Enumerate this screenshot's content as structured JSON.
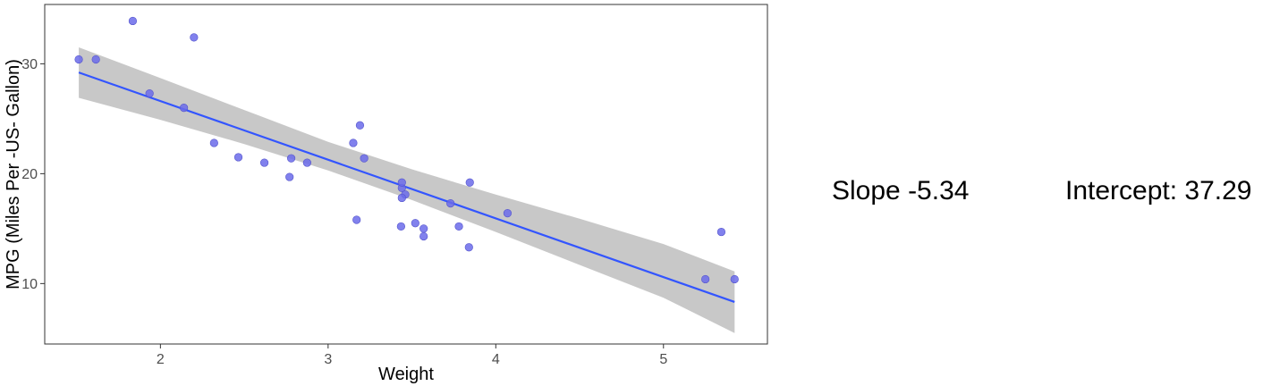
{
  "chart_data": {
    "type": "scatter",
    "xlabel": "Weight",
    "ylabel": "MPG (Miles Per -US- Gallon)",
    "xlim": [
      1.31,
      5.62
    ],
    "ylim": [
      4.5,
      35.4
    ],
    "x_ticks": [
      2,
      3,
      4,
      5
    ],
    "y_ticks": [
      10,
      20,
      30
    ],
    "grid": false,
    "colors": {
      "points": "#6b6bea",
      "line": "#3355ff",
      "band": "#c8c8c8"
    },
    "points": [
      {
        "x": 2.62,
        "y": 21.0
      },
      {
        "x": 2.875,
        "y": 21.0
      },
      {
        "x": 2.32,
        "y": 22.8
      },
      {
        "x": 3.215,
        "y": 21.4
      },
      {
        "x": 3.44,
        "y": 18.7
      },
      {
        "x": 3.46,
        "y": 18.1
      },
      {
        "x": 3.57,
        "y": 14.3
      },
      {
        "x": 3.19,
        "y": 24.4
      },
      {
        "x": 3.15,
        "y": 22.8
      },
      {
        "x": 3.44,
        "y": 19.2
      },
      {
        "x": 3.44,
        "y": 17.8
      },
      {
        "x": 4.07,
        "y": 16.4
      },
      {
        "x": 3.73,
        "y": 17.3
      },
      {
        "x": 3.78,
        "y": 15.2
      },
      {
        "x": 5.25,
        "y": 10.4
      },
      {
        "x": 5.424,
        "y": 10.4
      },
      {
        "x": 5.345,
        "y": 14.7
      },
      {
        "x": 2.2,
        "y": 32.4
      },
      {
        "x": 1.615,
        "y": 30.4
      },
      {
        "x": 1.835,
        "y": 33.9
      },
      {
        "x": 2.465,
        "y": 21.5
      },
      {
        "x": 3.52,
        "y": 15.5
      },
      {
        "x": 3.435,
        "y": 15.2
      },
      {
        "x": 3.84,
        "y": 13.3
      },
      {
        "x": 3.845,
        "y": 19.2
      },
      {
        "x": 1.935,
        "y": 27.3
      },
      {
        "x": 2.14,
        "y": 26.0
      },
      {
        "x": 1.513,
        "y": 30.4
      },
      {
        "x": 3.17,
        "y": 15.8
      },
      {
        "x": 2.77,
        "y": 19.7
      },
      {
        "x": 3.57,
        "y": 15.0
      },
      {
        "x": 2.78,
        "y": 21.4
      }
    ],
    "fit": {
      "slope": -5.34,
      "intercept": 37.29,
      "x_range": [
        1.513,
        5.424
      ]
    },
    "confidence_band": [
      {
        "x": 1.513,
        "lower": 26.9,
        "upper": 31.5
      },
      {
        "x": 2.0,
        "lower": 24.9,
        "upper": 28.7
      },
      {
        "x": 2.5,
        "lower": 22.7,
        "upper": 25.8
      },
      {
        "x": 3.0,
        "lower": 20.3,
        "upper": 22.9
      },
      {
        "x": 3.5,
        "lower": 17.6,
        "upper": 20.4
      },
      {
        "x": 4.0,
        "lower": 14.7,
        "upper": 18.1
      },
      {
        "x": 4.5,
        "lower": 11.7,
        "upper": 15.9
      },
      {
        "x": 5.0,
        "lower": 8.7,
        "upper": 13.6
      },
      {
        "x": 5.424,
        "lower": 5.5,
        "upper": 11.1
      }
    ]
  },
  "stats": {
    "slope_text": "Slope -5.34",
    "intercept_text": "Intercept: 37.29"
  }
}
